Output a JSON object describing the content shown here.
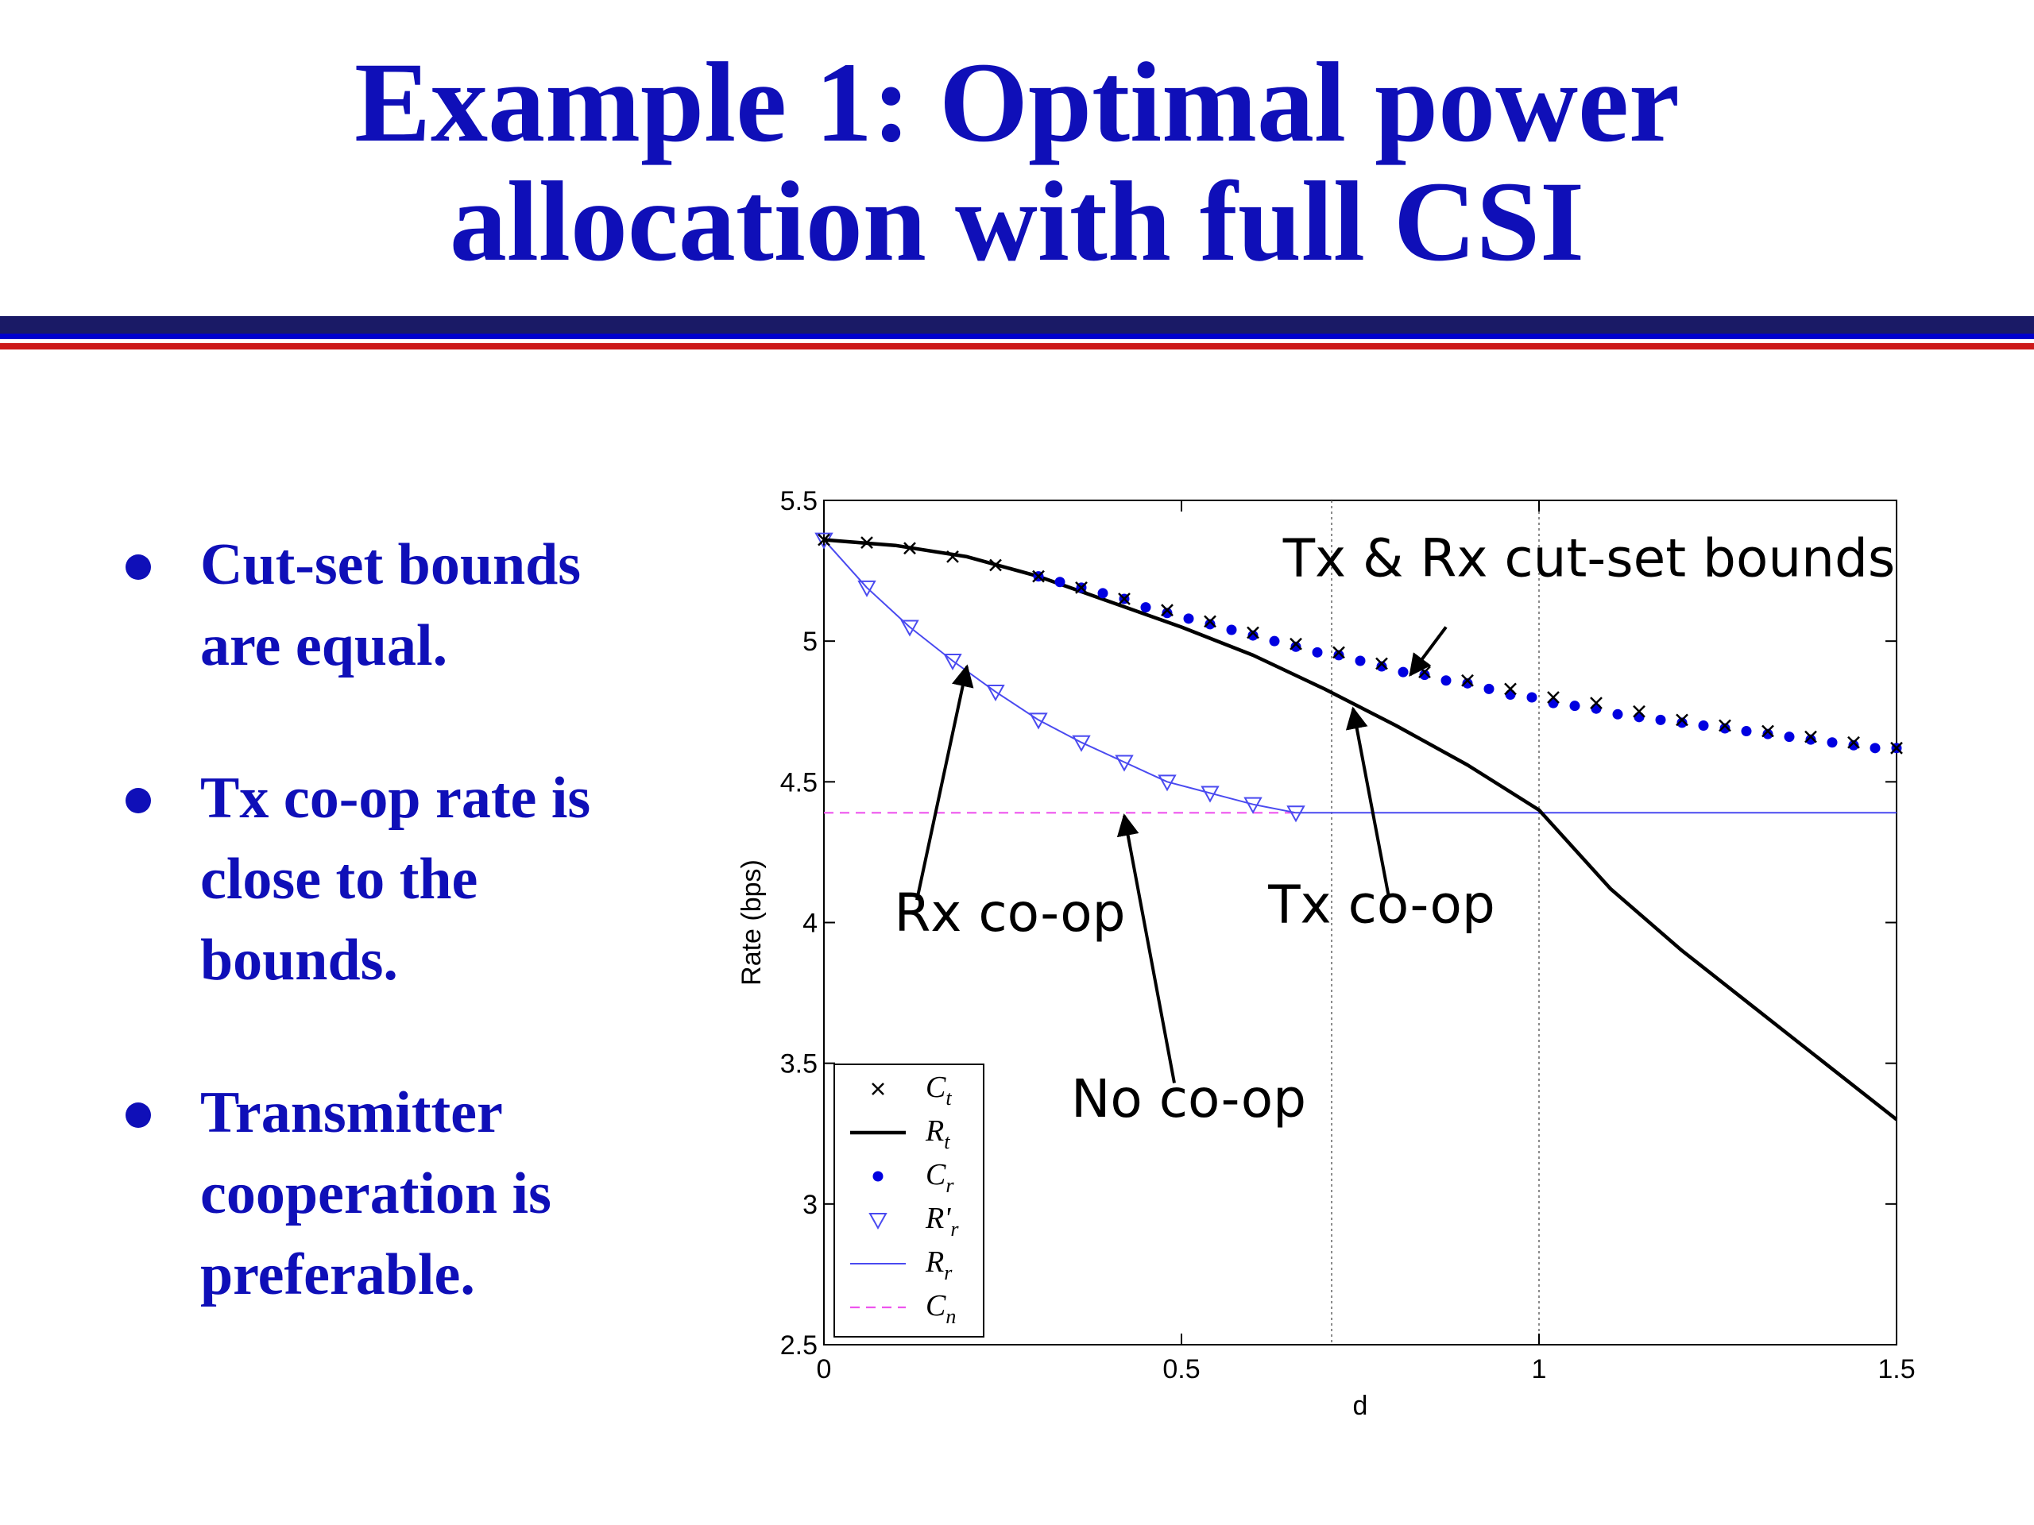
{
  "slide": {
    "title_lines": [
      "Example 1: Optimal power",
      "allocation with full CSI"
    ],
    "bullets": [
      {
        "lines": [
          "Cut-set bounds",
          "are equal."
        ]
      },
      {
        "lines": [
          "Tx co-op rate is",
          "close to the",
          "bounds."
        ]
      },
      {
        "lines": [
          "Transmitter",
          "cooperation is",
          "preferable."
        ]
      }
    ],
    "colors": {
      "title": "#0f0fb8",
      "rule_navy": "#1a1a66",
      "rule_blue": "#0000cc",
      "rule_red": "#cc1a1a"
    }
  },
  "chart_data": {
    "type": "line",
    "xlabel": "d",
    "ylabel": "Rate (bps)",
    "xlim": [
      0,
      1.5
    ],
    "ylim": [
      2.5,
      5.5
    ],
    "xticks": [
      0,
      0.5,
      1,
      1.5
    ],
    "xtick_labels": [
      "0",
      "0.5",
      "1",
      "1.5"
    ],
    "yticks": [
      2.5,
      3,
      3.5,
      4,
      4.5,
      5,
      5.5
    ],
    "ytick_labels": [
      "2.5",
      "3",
      "3.5",
      "4",
      "4.5",
      "5",
      "5.5"
    ],
    "grid": false,
    "vlines": [
      0.71,
      1.0
    ],
    "legend_position": "bottom-left",
    "series": [
      {
        "name": "C_t",
        "legend_main": "C",
        "legend_sub": "t",
        "style": "x-markers",
        "color": "#000000",
        "x": [
          0,
          0.06,
          0.12,
          0.18,
          0.24,
          0.3,
          0.36,
          0.42,
          0.48,
          0.54,
          0.6,
          0.66,
          0.72,
          0.78,
          0.84,
          0.9,
          0.96,
          1.02,
          1.08,
          1.14,
          1.2,
          1.26,
          1.32,
          1.38,
          1.44,
          1.5
        ],
        "y": [
          5.36,
          5.35,
          5.33,
          5.3,
          5.27,
          5.23,
          5.19,
          5.15,
          5.11,
          5.07,
          5.03,
          4.99,
          4.96,
          4.92,
          4.89,
          4.86,
          4.83,
          4.8,
          4.78,
          4.75,
          4.72,
          4.7,
          4.68,
          4.66,
          4.64,
          4.62
        ]
      },
      {
        "name": "R_t",
        "legend_main": "R",
        "legend_sub": "t",
        "style": "solid-thick",
        "color": "#000000",
        "x": [
          0,
          0.1,
          0.2,
          0.3,
          0.4,
          0.5,
          0.6,
          0.7,
          0.8,
          0.9,
          1.0,
          1.1,
          1.2,
          1.3,
          1.4,
          1.5
        ],
        "y": [
          5.36,
          5.34,
          5.3,
          5.23,
          5.14,
          5.05,
          4.95,
          4.83,
          4.7,
          4.56,
          4.4,
          4.12,
          3.9,
          3.7,
          3.5,
          3.3
        ]
      },
      {
        "name": "C_r",
        "legend_main": "C",
        "legend_sub": "r",
        "style": "dot-markers",
        "color": "#0000e0",
        "x": [
          0.3,
          0.33,
          0.36,
          0.39,
          0.42,
          0.45,
          0.48,
          0.51,
          0.54,
          0.57,
          0.6,
          0.63,
          0.66,
          0.69,
          0.72,
          0.75,
          0.78,
          0.81,
          0.84,
          0.87,
          0.9,
          0.93,
          0.96,
          0.99,
          1.02,
          1.05,
          1.08,
          1.11,
          1.14,
          1.17,
          1.2,
          1.23,
          1.26,
          1.29,
          1.32,
          1.35,
          1.38,
          1.41,
          1.44,
          1.47,
          1.5
        ],
        "y": [
          5.23,
          5.21,
          5.19,
          5.17,
          5.15,
          5.12,
          5.1,
          5.08,
          5.06,
          5.04,
          5.02,
          5.0,
          4.98,
          4.96,
          4.95,
          4.93,
          4.91,
          4.89,
          4.88,
          4.86,
          4.85,
          4.83,
          4.81,
          4.8,
          4.78,
          4.77,
          4.76,
          4.74,
          4.73,
          4.72,
          4.71,
          4.7,
          4.69,
          4.68,
          4.67,
          4.66,
          4.65,
          4.64,
          4.63,
          4.62,
          4.62
        ]
      },
      {
        "name": "R'_r",
        "legend_main": "R'",
        "legend_sub": "r",
        "style": "triangle-markers",
        "color": "#4a4af0",
        "x": [
          0,
          0.06,
          0.12,
          0.18,
          0.24,
          0.3,
          0.36,
          0.42,
          0.48,
          0.54,
          0.6,
          0.66
        ],
        "y": [
          5.36,
          5.19,
          5.05,
          4.93,
          4.82,
          4.72,
          4.64,
          4.57,
          4.5,
          4.46,
          4.42,
          4.39
        ]
      },
      {
        "name": "R_r",
        "legend_main": "R",
        "legend_sub": "r",
        "style": "solid-thin",
        "color": "#4a4af0",
        "x": [
          0,
          0.06,
          0.12,
          0.18,
          0.24,
          0.3,
          0.36,
          0.42,
          0.48,
          0.54,
          0.6,
          0.66,
          0.8,
          1.0,
          1.2,
          1.5
        ],
        "y": [
          5.36,
          5.19,
          5.05,
          4.93,
          4.82,
          4.72,
          4.64,
          4.57,
          4.5,
          4.46,
          4.42,
          4.39,
          4.39,
          4.39,
          4.39,
          4.39
        ]
      },
      {
        "name": "C_n",
        "legend_main": "C",
        "legend_sub": "n",
        "style": "dashed",
        "color": "#ee55ee",
        "x": [
          0,
          0.66
        ],
        "y": [
          4.39,
          4.39
        ]
      }
    ],
    "annotations": [
      {
        "text": "Tx & Rx cut-set bounds",
        "text_x": 1.07,
        "text_y": 5.23,
        "arrow_from": [
          0.87,
          5.05
        ],
        "arrow_to": [
          0.82,
          4.88
        ]
      },
      {
        "text": "Rx co-op",
        "text_x": 0.26,
        "text_y": 3.97,
        "arrow_from": [
          0.13,
          4.08
        ],
        "arrow_to": [
          0.2,
          4.91
        ]
      },
      {
        "text": "No co-op",
        "text_x": 0.51,
        "text_y": 3.31,
        "arrow_from": [
          0.49,
          3.43
        ],
        "arrow_to": [
          0.42,
          4.38
        ]
      },
      {
        "text": "Tx co-op",
        "text_x": 0.78,
        "text_y": 4.0,
        "arrow_from": [
          0.79,
          4.09
        ],
        "arrow_to": [
          0.74,
          4.76
        ]
      }
    ]
  }
}
